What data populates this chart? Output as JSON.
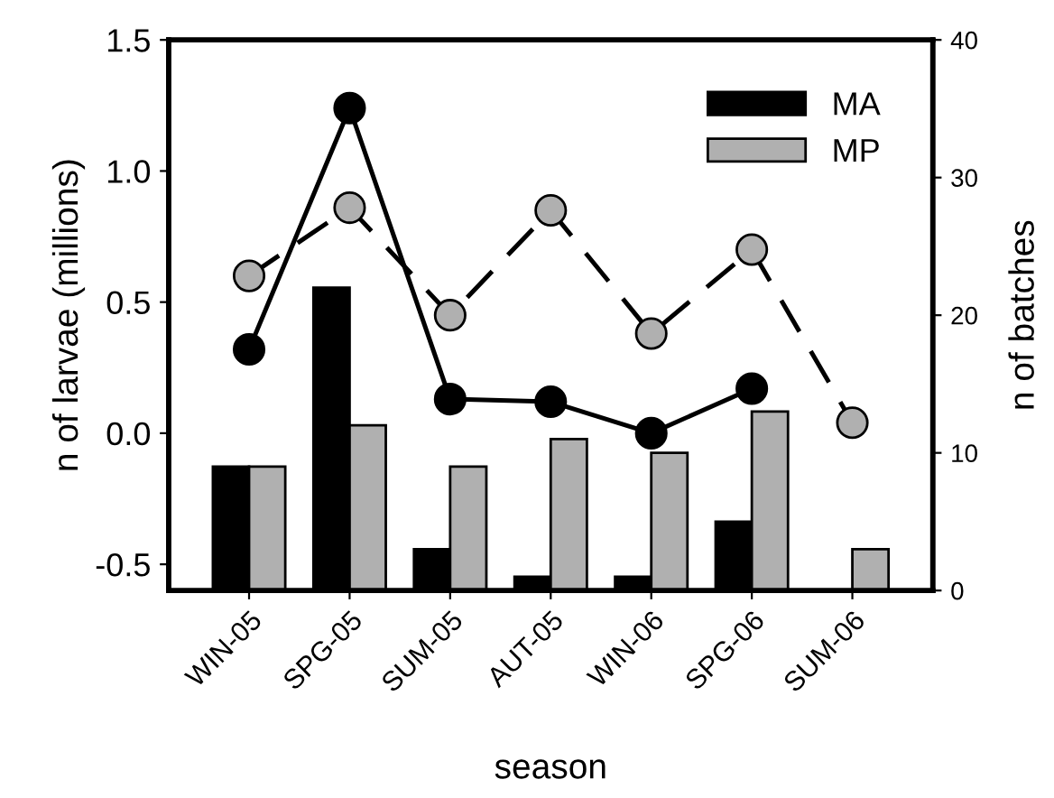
{
  "chart_data": {
    "type": "bar",
    "xlabel": "season",
    "ylabel": "n of larvae (millions)",
    "y2label": "n of batches",
    "categories": [
      "WIN-05",
      "SPG-05",
      "SUM-05",
      "AUT-05",
      "WIN-06",
      "SPG-06",
      "SUM-06"
    ],
    "series": [
      {
        "name": "MA",
        "axis": "y2",
        "color": "#000000",
        "values": [
          9,
          22,
          3,
          1,
          1,
          5,
          null
        ]
      },
      {
        "name": "MP",
        "axis": "y2",
        "color": "#b0b0b0",
        "values": [
          9,
          12,
          9,
          11,
          10,
          13,
          3
        ]
      },
      {
        "type": "line",
        "color": "#000000",
        "line_style": "solid",
        "values": [
          0.32,
          1.24,
          0.13,
          0.12,
          0.0,
          0.17,
          null
        ]
      },
      {
        "type": "line",
        "color": "#b0b0b0",
        "line_style": "dashed",
        "values": [
          0.6,
          0.86,
          0.45,
          0.85,
          0.38,
          0.7,
          0.04
        ]
      }
    ],
    "ylim": [
      -0.6,
      1.5
    ],
    "yticks": [
      {
        "value": -0.5,
        "label": "-0.5"
      },
      {
        "value": 0,
        "label": "0.0"
      },
      {
        "value": 0.5,
        "label": "0.5"
      },
      {
        "value": 1.0,
        "label": "1.0"
      },
      {
        "value": 1.5,
        "label": "1.5"
      }
    ],
    "y2lim": [
      0,
      40
    ],
    "y2ticks": [
      0,
      10,
      20,
      30,
      40
    ],
    "marker": "circle",
    "legend": "top right",
    "grid": false
  }
}
